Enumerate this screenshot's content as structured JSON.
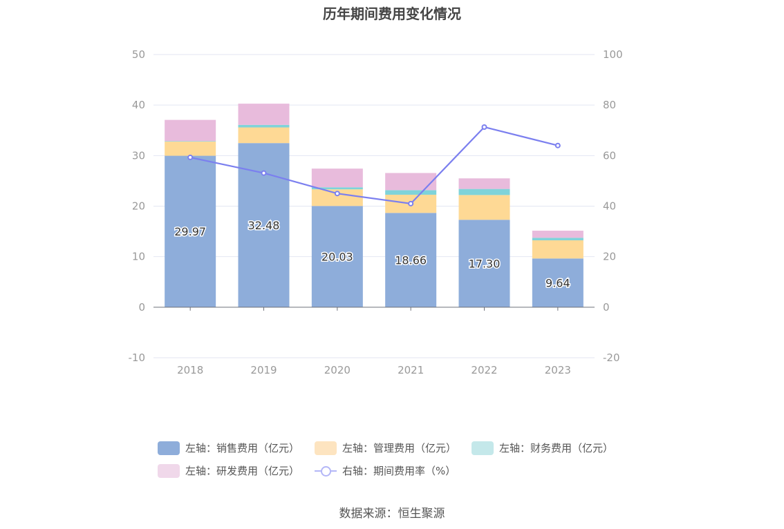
{
  "chart_data": {
    "type": "bar",
    "title": "历年期间费用变化情况",
    "categories": [
      "2018",
      "2019",
      "2020",
      "2021",
      "2022",
      "2023"
    ],
    "left_axis": {
      "min": -10,
      "max": 50,
      "ticks": [
        -10,
        0,
        10,
        20,
        30,
        40,
        50
      ]
    },
    "right_axis": {
      "min": -20,
      "max": 100,
      "ticks": [
        -20,
        0,
        20,
        40,
        60,
        80,
        100
      ]
    },
    "grid": true,
    "legend_position": "bottom",
    "series": [
      {
        "name": "左轴：销售费用（亿元）",
        "type": "bar",
        "stack": true,
        "axis": "left",
        "color": "#8eadda",
        "values": [
          29.97,
          32.48,
          20.03,
          18.66,
          17.3,
          9.64
        ],
        "labels": [
          "29.97",
          "32.48",
          "20.03",
          "18.66",
          "17.30",
          "9.64"
        ]
      },
      {
        "name": "左轴：管理费用（亿元）",
        "type": "bar",
        "stack": true,
        "axis": "left",
        "color": "#fed995",
        "values": [
          2.8,
          3.1,
          3.3,
          3.6,
          4.9,
          3.6
        ]
      },
      {
        "name": "左轴：财务费用（亿元）",
        "type": "bar",
        "stack": true,
        "axis": "left",
        "color": "#7fd3d9",
        "values": [
          0.1,
          0.5,
          0.4,
          0.9,
          1.2,
          0.5
        ]
      },
      {
        "name": "左轴：研发费用（亿元）",
        "type": "bar",
        "stack": true,
        "axis": "left",
        "color": "#e8bbdc",
        "values": [
          4.2,
          4.2,
          3.7,
          3.4,
          2.1,
          1.4
        ]
      },
      {
        "name": "右轴：期间费用率（%）",
        "type": "line",
        "axis": "right",
        "color": "#7b7fef",
        "values": [
          59.3,
          53.1,
          45.0,
          41.0,
          71.3,
          64.0
        ]
      }
    ]
  },
  "legend_swatch_colors": [
    "#8eadda",
    "#fde4c0",
    "#c4e8ea",
    "#f0d8ea",
    "#7b7fef"
  ],
  "source": "数据来源：恒生聚源"
}
